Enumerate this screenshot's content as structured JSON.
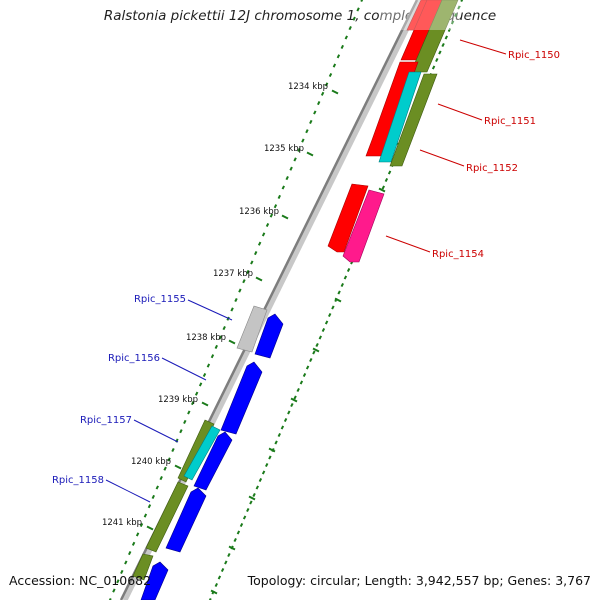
{
  "title": "Ralstonia pickettii 12J chromosome 1, complete sequence",
  "footer": {
    "accession": "Accession: NC_010682",
    "summary": "Topology: circular; Length: 3,942,557 bp; Genes: 3,767"
  },
  "ruler": {
    "ticks": [
      "1234 kbp",
      "1235 kbp",
      "1236 kbp",
      "1237 kbp",
      "1238 kbp",
      "1239 kbp",
      "1240 kbp",
      "1241 kbp"
    ]
  },
  "gene_labels": {
    "forward_strand": [
      "Rpic_1150",
      "Rpic_1151",
      "Rpic_1152",
      "Rpic_1154"
    ],
    "reverse_strand": [
      "Rpic_1155",
      "Rpic_1156",
      "Rpic_1157",
      "Rpic_1158"
    ]
  },
  "colors": {
    "forward_label": "#cc0000",
    "reverse_label": "#1a1ab8",
    "backbone": "#8a8a8a",
    "ruler_dots": "#1a7a1a",
    "gene_red": "#ff0000",
    "gene_magenta": "#ff1a8c",
    "gene_blue": "#0000ff",
    "gene_cyan": "#00cccc",
    "gene_olive": "#6b8e23",
    "gene_gray": "#c0c0c0"
  }
}
